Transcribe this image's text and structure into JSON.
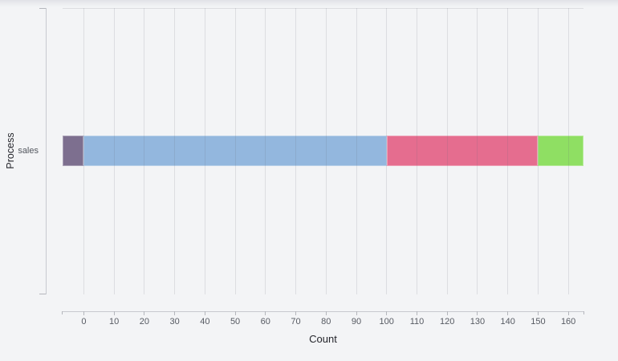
{
  "window": {
    "background": "#f3f4f6"
  },
  "style": {
    "background": "#f3f4f6",
    "gridline_color": "rgba(100,106,120,0.16)",
    "axis_line_color": "#c7c9cf",
    "tick_mark_color": "#b4b6bc",
    "tick_label_color": "#565a62",
    "axis_title_color": "#24252b",
    "bar_outline_color": "rgba(255,255,255,0.35)"
  },
  "chart_data": {
    "type": "bar",
    "orientation": "horizontal",
    "stacked": true,
    "title": "",
    "xlabel": "Count",
    "ylabel": "Process",
    "categories": [
      "sales"
    ],
    "x_ticks": [
      0,
      10,
      20,
      30,
      40,
      50,
      60,
      70,
      80,
      90,
      100,
      110,
      120,
      130,
      140,
      150,
      160
    ],
    "xlim": [
      -7,
      165
    ],
    "grid": "vertical-gridlines-only",
    "legend": "none",
    "series": [
      {
        "name": "purple-segment",
        "color": "#7d6f8f",
        "start": -7,
        "end": 0,
        "value": -7
      },
      {
        "name": "blue-segment",
        "color": "#93b7de",
        "start": 0,
        "end": 100,
        "value": 100
      },
      {
        "name": "rose-segment",
        "color": "#e56d8f",
        "start": 100,
        "end": 150,
        "value": 50
      },
      {
        "name": "green-segment",
        "color": "#8fdf63",
        "start": 150,
        "end": 165,
        "value": 15
      }
    ]
  }
}
